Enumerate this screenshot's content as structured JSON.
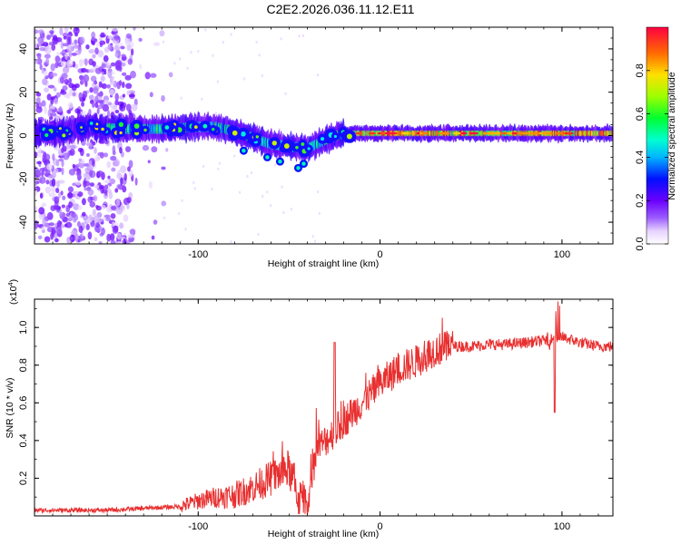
{
  "title": "C2E2.2026.036.11.12.E11",
  "chart_data": [
    {
      "type": "heatmap",
      "name": "spectrogram",
      "xlabel": "Height of straight line (km)",
      "ylabel": "Frequency (Hz)",
      "xlim": [
        -190,
        128
      ],
      "ylim": [
        -50,
        50
      ],
      "xticks": [
        -100,
        0,
        100
      ],
      "xtick_labels": [
        "-100",
        "0",
        "100"
      ],
      "yticks": [
        -40,
        -20,
        0,
        20,
        40
      ],
      "ytick_labels": [
        "-40",
        "-20",
        "0",
        "20",
        "40"
      ],
      "colorbar": {
        "label": "Normalized spectral amplitude",
        "range": [
          0,
          1
        ],
        "ticks": [
          0.0,
          0.2,
          0.4,
          0.6,
          0.8
        ],
        "tick_labels": [
          "0.0",
          "0.2",
          "0.4",
          "0.6",
          "0.8"
        ]
      },
      "ridge": {
        "x": [
          -180,
          -160,
          -140,
          -120,
          -100,
          -90,
          -80,
          -70,
          -60,
          -50,
          -40,
          -30,
          -20,
          -10,
          0,
          10,
          20,
          40,
          60,
          80,
          100,
          128
        ],
        "y": [
          1,
          4,
          3,
          3,
          4,
          4,
          2,
          -1,
          -4,
          -5,
          -6,
          -2,
          1,
          1,
          1,
          1,
          1,
          1,
          1,
          1,
          1,
          1
        ]
      }
    },
    {
      "type": "line",
      "name": "snr",
      "xlabel": "Height of straight line (km)",
      "ylabel": "SNR (10 * v/v)",
      "yscale_label": "(x10",
      "yscale_exp": "4",
      "yscale_close": ")",
      "xlim": [
        -190,
        128
      ],
      "ylim": [
        0,
        1.15
      ],
      "xticks": [
        -100,
        0,
        100
      ],
      "xtick_labels": [
        "-100",
        "0",
        "100"
      ],
      "yticks": [
        0.2,
        0.4,
        0.6,
        0.8,
        1.0
      ],
      "ytick_labels": [
        "0.2",
        "0.4",
        "0.6",
        "0.8",
        "1.0"
      ],
      "color": "#e83030",
      "series": [
        {
          "name": "SNR",
          "x": [
            -190,
            -170,
            -150,
            -130,
            -110,
            -100,
            -90,
            -80,
            -70,
            -60,
            -50,
            -45,
            -40,
            -35,
            -30,
            -25,
            -20,
            -15,
            -10,
            -5,
            0,
            10,
            20,
            30,
            40,
            50,
            60,
            70,
            80,
            90,
            100,
            110,
            120,
            128
          ],
          "y": [
            0.03,
            0.03,
            0.03,
            0.04,
            0.05,
            0.08,
            0.1,
            0.11,
            0.15,
            0.2,
            0.25,
            0.1,
            0.05,
            0.35,
            0.4,
            0.45,
            0.5,
            0.55,
            0.6,
            0.65,
            0.7,
            0.78,
            0.82,
            0.88,
            0.9,
            0.9,
            0.91,
            0.91,
            0.92,
            0.93,
            0.95,
            0.92,
            0.9,
            0.9
          ]
        }
      ]
    }
  ]
}
